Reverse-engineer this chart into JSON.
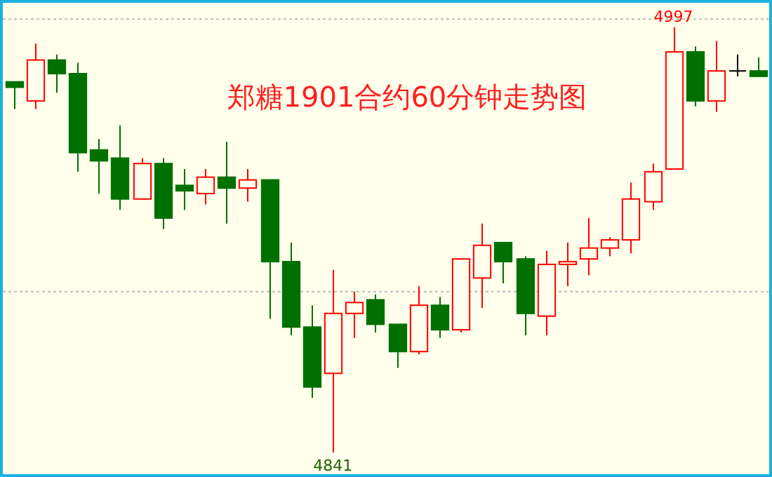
{
  "chart_data": {
    "type": "candlestick",
    "title": "郑糖1901合约60分钟走势图",
    "categories": [
      null,
      null,
      null,
      null,
      null,
      null,
      null,
      null,
      null,
      null,
      null,
      null,
      null,
      null,
      null,
      null,
      null,
      null,
      null,
      null,
      null,
      null,
      null,
      null,
      null,
      null,
      null,
      null,
      null,
      null,
      null,
      null,
      null,
      null,
      null,
      null
    ],
    "ohlc": [
      [
        4977,
        4977,
        4967,
        4975
      ],
      [
        4970,
        4991,
        4967,
        4985
      ],
      [
        4985,
        4987,
        4973,
        4980
      ],
      [
        4980,
        4984,
        4944,
        4951
      ],
      [
        4952,
        4956,
        4936,
        4948
      ],
      [
        4949,
        4961,
        4930,
        4934
      ],
      [
        4934,
        4949,
        4934,
        4947
      ],
      [
        4947,
        4949,
        4923,
        4927
      ],
      [
        4939,
        4945,
        4930,
        4937
      ],
      [
        4936,
        4945,
        4932,
        4942
      ],
      [
        4942,
        4955,
        4925,
        4938
      ],
      [
        4938,
        4945,
        4933,
        4941
      ],
      [
        4941,
        4941,
        4890,
        4911
      ],
      [
        4911,
        4918,
        4884,
        4887
      ],
      [
        4887,
        4895,
        4861,
        4865
      ],
      [
        4870,
        4908,
        4841,
        4892
      ],
      [
        4892,
        4900,
        4883,
        4896
      ],
      [
        4897,
        4899,
        4885,
        4888
      ],
      [
        4888,
        4888,
        4872,
        4878
      ],
      [
        4878,
        4902,
        4877,
        4895
      ],
      [
        4895,
        4898,
        4883,
        4886
      ],
      [
        4886,
        4912,
        4885,
        4912
      ],
      [
        4905,
        4925,
        4894,
        4917
      ],
      [
        4918,
        4918,
        4903,
        4911
      ],
      [
        4912,
        4913,
        4884,
        4892
      ],
      [
        4891,
        4915,
        4884,
        4910
      ],
      [
        4910,
        4918,
        4902,
        4911
      ],
      [
        4912,
        4927,
        4906,
        4916
      ],
      [
        4916,
        4920,
        4913,
        4919
      ],
      [
        4919,
        4940,
        4914,
        4934
      ],
      [
        4933,
        4947,
        4930,
        4944
      ],
      [
        4945,
        4997,
        4945,
        4988
      ],
      [
        4988,
        4990,
        4968,
        4970
      ],
      [
        4970,
        4992,
        4966,
        4981
      ],
      [
        4981,
        4987,
        4979,
        4981
      ],
      [
        4981,
        4986,
        4979,
        4979
      ]
    ],
    "colors": [
      "#007000",
      "#ff0000",
      "#007000",
      "#007000",
      "#007000",
      "#007000",
      "#ff0000",
      "#007000",
      "#007000",
      "#ff0000",
      "#007000",
      "#ff0000",
      "#007000",
      "#007000",
      "#007000",
      "#ff0000",
      "#ff0000",
      "#007000",
      "#007000",
      "#ff0000",
      "#007000",
      "#ff0000",
      "#ff0000",
      "#007000",
      "#007000",
      "#ff0000",
      "#ff0000",
      "#ff0000",
      "#ff0000",
      "#ff0000",
      "#ff0000",
      "#ff0000",
      "#007000",
      "#ff0000",
      "#000000",
      "#007000"
    ],
    "ylim": [
      4833,
      5006
    ],
    "yticks": [
      {
        "value": 4900,
        "label": null
      },
      {
        "value": 5000,
        "label": null
      }
    ],
    "grid": "y",
    "annotations": [
      {
        "text": "4997",
        "y": 4997
      },
      {
        "text": "4841",
        "y": 4841
      }
    ]
  }
}
